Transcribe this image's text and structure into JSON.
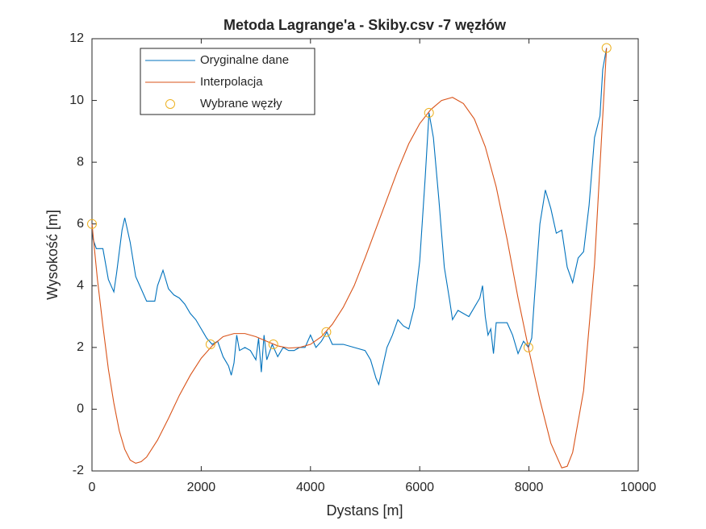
{
  "chart_data": {
    "type": "line",
    "title": "Metoda Lagrange'a - Skiby.csv -7 węzłów",
    "xlabel": "Dystans [m]",
    "ylabel": "Wysokość [m]",
    "xlim": [
      0,
      10000
    ],
    "ylim": [
      -2,
      12
    ],
    "xticks": [
      0,
      2000,
      4000,
      6000,
      8000,
      10000
    ],
    "yticks": [
      -2,
      0,
      2,
      4,
      6,
      8,
      10,
      12
    ],
    "legend": "upper-left",
    "series": [
      {
        "name": "Oryginalne dane",
        "color": "#0072BD",
        "x": [
          0,
          20,
          80,
          200,
          300,
          400,
          450,
          550,
          600,
          700,
          800,
          900,
          1000,
          1150,
          1200,
          1300,
          1400,
          1500,
          1600,
          1700,
          1800,
          1900,
          2000,
          2100,
          2200,
          2300,
          2400,
          2500,
          2550,
          2600,
          2650,
          2700,
          2800,
          2900,
          3000,
          3050,
          3100,
          3150,
          3200,
          3300,
          3400,
          3500,
          3600,
          3700,
          3800,
          3900,
          4000,
          4100,
          4200,
          4300,
          4400,
          4600,
          4800,
          5000,
          5100,
          5200,
          5250,
          5300,
          5400,
          5500,
          5600,
          5700,
          5800,
          5900,
          6000,
          6100,
          6170,
          6250,
          6350,
          6450,
          6550,
          6600,
          6700,
          6800,
          6900,
          7000,
          7100,
          7150,
          7200,
          7250,
          7300,
          7350,
          7400,
          7500,
          7600,
          7700,
          7800,
          7900,
          7990,
          8050,
          8100,
          8200,
          8300,
          8400,
          8500,
          8600,
          8700,
          8800,
          8900,
          9000,
          9100,
          9200,
          9300,
          9350,
          9420
        ],
        "values": [
          6,
          5.5,
          5.2,
          5.2,
          4.2,
          3.8,
          4.4,
          5.8,
          6.2,
          5.4,
          4.3,
          3.9,
          3.5,
          3.5,
          4.0,
          4.5,
          3.9,
          3.7,
          3.6,
          3.4,
          3.1,
          2.9,
          2.6,
          2.3,
          2.1,
          2.2,
          1.7,
          1.4,
          1.1,
          1.5,
          2.4,
          1.9,
          2.0,
          1.9,
          1.6,
          2.3,
          1.2,
          2.4,
          1.6,
          2.1,
          1.7,
          2.0,
          1.9,
          1.9,
          2.0,
          2.0,
          2.4,
          2.0,
          2.2,
          2.5,
          2.1,
          2.1,
          2.0,
          1.9,
          1.6,
          1.0,
          0.8,
          1.2,
          2.0,
          2.4,
          2.9,
          2.7,
          2.6,
          3.3,
          4.8,
          7.5,
          9.6,
          8.8,
          6.8,
          4.6,
          3.5,
          2.9,
          3.2,
          3.1,
          3.0,
          3.3,
          3.6,
          4.0,
          3.0,
          2.4,
          2.6,
          1.8,
          2.8,
          2.8,
          2.8,
          2.4,
          1.8,
          2.2,
          2.0,
          2.3,
          3.6,
          6.0,
          7.1,
          6.5,
          5.7,
          5.8,
          4.6,
          4.1,
          4.9,
          5.1,
          6.6,
          8.8,
          9.5,
          11.0,
          11.7
        ]
      },
      {
        "name": "Interpolacja",
        "color": "#D95319",
        "x": [
          0,
          100,
          200,
          300,
          400,
          500,
          600,
          700,
          800,
          900,
          1000,
          1200,
          1400,
          1600,
          1800,
          2000,
          2200,
          2400,
          2600,
          2800,
          3000,
          3200,
          3400,
          3600,
          3800,
          4000,
          4200,
          4400,
          4600,
          4800,
          5000,
          5200,
          5400,
          5600,
          5800,
          6000,
          6200,
          6400,
          6600,
          6800,
          7000,
          7200,
          7400,
          7600,
          7800,
          8000,
          8200,
          8400,
          8600,
          8700,
          8800,
          9000,
          9200,
          9420
        ],
        "values": [
          6,
          4.2,
          2.7,
          1.3,
          0.2,
          -0.7,
          -1.3,
          -1.65,
          -1.75,
          -1.7,
          -1.55,
          -1.0,
          -0.3,
          0.45,
          1.1,
          1.65,
          2.05,
          2.35,
          2.45,
          2.45,
          2.35,
          2.2,
          2.05,
          1.98,
          2.0,
          2.1,
          2.35,
          2.75,
          3.3,
          4.0,
          4.9,
          5.85,
          6.8,
          7.75,
          8.6,
          9.25,
          9.7,
          10.0,
          10.1,
          9.9,
          9.4,
          8.5,
          7.2,
          5.5,
          3.6,
          1.9,
          0.3,
          -1.1,
          -1.9,
          -1.85,
          -1.4,
          0.6,
          4.7,
          11.7
        ]
      },
      {
        "name": "Wybrane węzły",
        "color": "#EDB120",
        "marker": "circle",
        "x": [
          0,
          2170,
          3320,
          4290,
          6170,
          7990,
          9420
        ],
        "values": [
          6,
          2.1,
          2.1,
          2.5,
          9.6,
          2.0,
          11.7
        ]
      }
    ]
  }
}
